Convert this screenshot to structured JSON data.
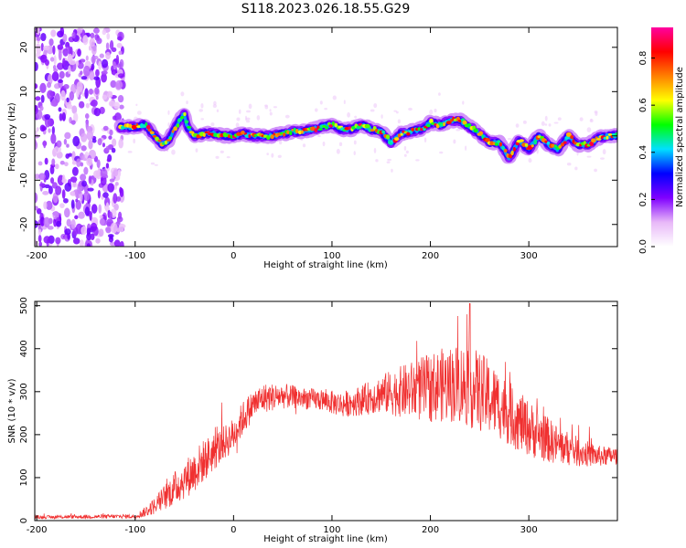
{
  "title": "S118.2023.026.18.55.G29",
  "chart_data": [
    {
      "type": "heatmap",
      "xlabel": "Height of straight line (km)",
      "ylabel": "Frequency (Hz)",
      "xlim": [
        -202,
        390
      ],
      "ylim": [
        -25,
        24.5
      ],
      "xticks": [
        -200,
        -100,
        0,
        100,
        200,
        300
      ],
      "yticks": [
        -20,
        -10,
        0,
        10,
        20
      ],
      "grid": false,
      "noise_region_x": [
        -202,
        -112
      ],
      "ridge": {
        "x": [
          -115,
          -100,
          -90,
          -80,
          -73,
          -66,
          -60,
          -55,
          -50,
          -47,
          -40,
          -30,
          -20,
          -10,
          0,
          10,
          20,
          30,
          40,
          50,
          60,
          70,
          80,
          90,
          100,
          110,
          120,
          130,
          140,
          150,
          160,
          170,
          180,
          190,
          200,
          210,
          220,
          230,
          240,
          250,
          260,
          270,
          280,
          290,
          300,
          310,
          320,
          330,
          340,
          350,
          360,
          370,
          380,
          390
        ],
        "frequency": [
          2,
          2,
          2.5,
          0,
          -2,
          -1,
          1.5,
          3.5,
          5,
          2,
          0,
          0.5,
          0.5,
          0,
          0,
          0.5,
          0,
          0,
          0,
          0.5,
          1,
          1,
          1.5,
          2,
          2.5,
          1.5,
          1.5,
          2.5,
          1.5,
          1,
          -1.5,
          0.5,
          1,
          1.5,
          3,
          2.5,
          3.5,
          3.5,
          2,
          0.5,
          -1.5,
          -1.5,
          -5,
          -1,
          -3,
          0,
          -2,
          -3,
          0,
          -2,
          -2,
          -0.5,
          0,
          0
        ]
      },
      "colorbar": {
        "label": "Normalized spectral amplitude",
        "range": [
          0,
          0.93
        ],
        "ticks": [
          0.0,
          0.2,
          0.4,
          0.6,
          0.8
        ],
        "colors": [
          "#ffffff",
          "#e8b8f8",
          "#8000ff",
          "#0000ff",
          "#00e0ff",
          "#00ff00",
          "#ffff00",
          "#ff8000",
          "#ff0000",
          "#ff00a0"
        ]
      }
    },
    {
      "type": "line",
      "xlabel": "Height of straight line (km)",
      "ylabel": "SNR (10 * v/v)",
      "xlim": [
        -202,
        390
      ],
      "ylim": [
        0,
        510
      ],
      "xticks": [
        -200,
        -100,
        0,
        100,
        200,
        300
      ],
      "yticks": [
        0,
        100,
        200,
        300,
        400,
        500
      ],
      "grid": false,
      "color": "#f03030",
      "envelope": {
        "x": [
          -202,
          -100,
          -90,
          -80,
          -70,
          -60,
          -50,
          -40,
          -30,
          -20,
          -10,
          0,
          10,
          20,
          30,
          50,
          70,
          90,
          110,
          130,
          150,
          170,
          190,
          210,
          230,
          250,
          270,
          290,
          310,
          330,
          350,
          370,
          390
        ],
        "mean": [
          8,
          10,
          20,
          35,
          55,
          75,
          95,
          115,
          140,
          160,
          180,
          200,
          240,
          270,
          285,
          290,
          285,
          280,
          270,
          280,
          295,
          300,
          305,
          315,
          320,
          300,
          270,
          230,
          200,
          175,
          160,
          150,
          150
        ],
        "spread": [
          4,
          5,
          12,
          20,
          30,
          40,
          45,
          50,
          50,
          45,
          40,
          40,
          40,
          35,
          35,
          30,
          25,
          25,
          30,
          35,
          45,
          60,
          75,
          85,
          95,
          95,
          80,
          70,
          60,
          45,
          35,
          25,
          20
        ]
      },
      "peak": {
        "x": 240,
        "y": 505
      }
    }
  ]
}
